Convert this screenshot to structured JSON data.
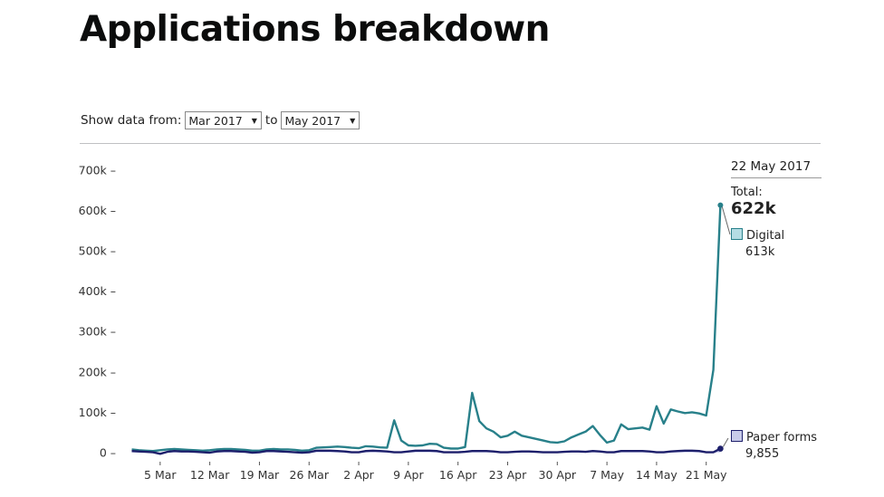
{
  "page": {
    "title": "Applications breakdown"
  },
  "filter": {
    "label": "Show data from:",
    "to_label": "to",
    "from_value": "Mar 2017",
    "to_value": "May 2017",
    "arrow": "▼"
  },
  "tooltip": {
    "date": "22 May 2017",
    "total_label": "Total:",
    "total_value": "622k",
    "digital_label": "Digital",
    "digital_value": "613k",
    "paper_label": "Paper forms",
    "paper_value": "9,855"
  },
  "colors": {
    "digital_line": "#28808a",
    "digital_swatch_fill": "#b4dde4",
    "paper_line": "#1d1f6b",
    "paper_fill": "#c5c8ec",
    "paper_swatch_fill": "#c8cbe9"
  },
  "chart_data": {
    "type": "line",
    "title": "Applications breakdown",
    "xlabel": "",
    "ylabel": "",
    "ylim": [
      0,
      700000
    ],
    "grid": false,
    "legend_position": "right (inline tooltip)",
    "y_ticks": [
      "0",
      "100k",
      "200k",
      "300k",
      "400k",
      "500k",
      "600k",
      "700k"
    ],
    "x_ticks": [
      "5 Mar",
      "12 Mar",
      "19 Mar",
      "26 Mar",
      "2 Apr",
      "9 Apr",
      "16 Apr",
      "23 Apr",
      "30 Apr",
      "7 May",
      "14 May",
      "21 May"
    ],
    "x": [
      "1 Mar",
      "2 Mar",
      "3 Mar",
      "4 Mar",
      "5 Mar",
      "6 Mar",
      "7 Mar",
      "8 Mar",
      "9 Mar",
      "10 Mar",
      "11 Mar",
      "12 Mar",
      "13 Mar",
      "14 Mar",
      "15 Mar",
      "16 Mar",
      "17 Mar",
      "18 Mar",
      "19 Mar",
      "20 Mar",
      "21 Mar",
      "22 Mar",
      "23 Mar",
      "24 Mar",
      "25 Mar",
      "26 Mar",
      "27 Mar",
      "28 Mar",
      "29 Mar",
      "30 Mar",
      "31 Mar",
      "1 Apr",
      "2 Apr",
      "3 Apr",
      "4 Apr",
      "5 Apr",
      "6 Apr",
      "7 Apr",
      "8 Apr",
      "9 Apr",
      "10 Apr",
      "11 Apr",
      "12 Apr",
      "13 Apr",
      "14 Apr",
      "15 Apr",
      "16 Apr",
      "17 Apr",
      "18 Apr",
      "19 Apr",
      "20 Apr",
      "21 Apr",
      "22 Apr",
      "23 Apr",
      "24 Apr",
      "25 Apr",
      "26 Apr",
      "27 Apr",
      "28 Apr",
      "29 Apr",
      "30 Apr",
      "1 May",
      "2 May",
      "3 May",
      "4 May",
      "5 May",
      "6 May",
      "7 May",
      "8 May",
      "9 May",
      "10 May",
      "11 May",
      "12 May",
      "13 May",
      "14 May",
      "15 May",
      "16 May",
      "17 May",
      "18 May",
      "19 May",
      "20 May",
      "21 May",
      "22 May"
    ],
    "series": [
      {
        "name": "Digital",
        "values": [
          8000,
          6000,
          5000,
          4000,
          6000,
          8000,
          9000,
          8000,
          7000,
          6000,
          5000,
          6000,
          8000,
          9000,
          9000,
          8000,
          7000,
          5000,
          5000,
          8000,
          9000,
          8000,
          8000,
          7000,
          5000,
          6000,
          12000,
          13000,
          14000,
          15000,
          14000,
          12000,
          11000,
          16000,
          15000,
          13000,
          12000,
          80000,
          30000,
          18000,
          17000,
          18000,
          22000,
          21000,
          12000,
          10000,
          10000,
          14000,
          148000,
          78000,
          60000,
          52000,
          38000,
          42000,
          52000,
          42000,
          38000,
          34000,
          30000,
          26000,
          25000,
          28000,
          38000,
          45000,
          52000,
          66000,
          44000,
          25000,
          30000,
          70000,
          58000,
          60000,
          62000,
          57000,
          115000,
          72000,
          107000,
          102000,
          98000,
          100000,
          97000,
          92000,
          205000,
          613000
        ],
        "color": "#28808a"
      },
      {
        "name": "Paper forms",
        "values": [
          4000,
          3000,
          2000,
          1000,
          -3000,
          2000,
          4000,
          3000,
          3000,
          2000,
          1000,
          0,
          3000,
          4000,
          4000,
          3000,
          2000,
          0,
          1000,
          4000,
          4000,
          3000,
          2000,
          1000,
          0,
          1000,
          5000,
          5000,
          5000,
          4000,
          3000,
          1000,
          1000,
          4000,
          5000,
          4000,
          3000,
          1000,
          1000,
          3000,
          5000,
          5000,
          5000,
          4000,
          1000,
          1000,
          1000,
          2000,
          4000,
          4000,
          4000,
          3000,
          1000,
          1000,
          2000,
          3000,
          3000,
          2000,
          1000,
          1000,
          1000,
          2000,
          3000,
          3000,
          2000,
          4000,
          3000,
          1000,
          1000,
          4000,
          4000,
          4000,
          4000,
          3000,
          1000,
          1000,
          3000,
          4000,
          5000,
          5000,
          4000,
          1000,
          1000,
          9855
        ],
        "color": "#1d1f6b"
      }
    ]
  }
}
